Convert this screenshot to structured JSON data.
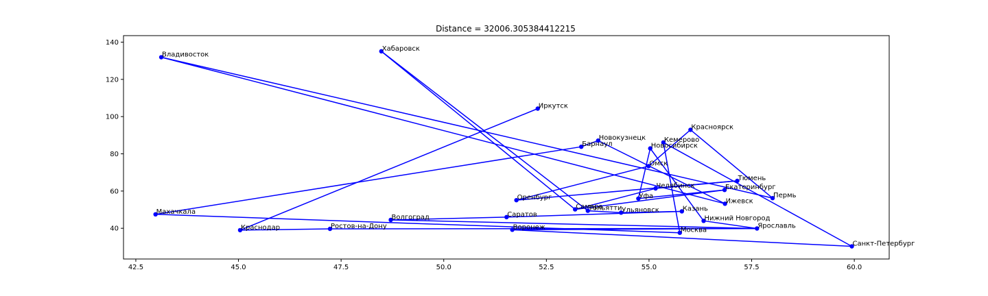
{
  "chart_data": {
    "type": "line",
    "title": "Distance = 32006.305384412215",
    "xlabel": "",
    "ylabel": "",
    "xlim": [
      42.2,
      60.85
    ],
    "ylim": [
      23.5,
      143.5
    ],
    "x_ticks": [
      42.5,
      45.0,
      47.5,
      50.0,
      52.5,
      55.0,
      57.5,
      60.0
    ],
    "x_tick_labels": [
      "42.5",
      "45.0",
      "47.5",
      "50.0",
      "52.5",
      "55.0",
      "57.5",
      "60.0"
    ],
    "y_ticks": [
      40,
      60,
      80,
      100,
      120,
      140
    ],
    "y_tick_labels": [
      "40",
      "60",
      "80",
      "100",
      "120",
      "140"
    ],
    "grid": false,
    "line_color": "#0000ff",
    "marker_color": "#0000ff",
    "path": [
      {
        "name": "Иркутск",
        "x": 52.29,
        "y": 104.3
      },
      {
        "name": "Краснодар",
        "x": 45.04,
        "y": 39.0
      },
      {
        "name": "Ростов-на-Дону",
        "x": 47.23,
        "y": 39.7
      },
      {
        "name": "Ярославль",
        "x": 57.63,
        "y": 39.9
      },
      {
        "name": "Нижний Новгород",
        "x": 56.33,
        "y": 44.0
      },
      {
        "name": "Новосибирск",
        "x": 55.03,
        "y": 82.9
      },
      {
        "name": "Уфа",
        "x": 54.74,
        "y": 55.97
      },
      {
        "name": "Екатеринбург",
        "x": 56.84,
        "y": 60.6
      },
      {
        "name": "Самара",
        "x": 53.2,
        "y": 50.15
      },
      {
        "name": "Хабаровск",
        "x": 48.48,
        "y": 135.08
      },
      {
        "name": "Тольятти",
        "x": 53.51,
        "y": 49.42
      },
      {
        "name": "Ульяновск",
        "x": 54.32,
        "y": 48.4
      },
      {
        "name": "Казань",
        "x": 55.8,
        "y": 49.1
      },
      {
        "name": "Саратов",
        "x": 51.53,
        "y": 46.0
      },
      {
        "name": "Волгоград",
        "x": 48.71,
        "y": 44.5
      },
      {
        "name": "Ярославль",
        "x": 57.63,
        "y": 39.9
      },
      {
        "name": "Воронеж",
        "x": 51.67,
        "y": 39.2
      },
      {
        "name": "Санкт-Петербург",
        "x": 59.94,
        "y": 30.3
      },
      {
        "name": "Кемерово",
        "x": 55.35,
        "y": 86.1
      },
      {
        "name": "Москва",
        "x": 55.75,
        "y": 37.6
      },
      {
        "name": "Махачкала",
        "x": 42.98,
        "y": 47.5
      },
      {
        "name": "Барнаул",
        "x": 53.35,
        "y": 83.8
      },
      {
        "name": "Новокузнецк",
        "x": 53.76,
        "y": 87.1
      },
      {
        "name": "Ижевск",
        "x": 56.85,
        "y": 53.2
      },
      {
        "name": "Владивосток",
        "x": 43.12,
        "y": 131.9
      },
      {
        "name": "Пермь",
        "x": 58.01,
        "y": 56.2
      },
      {
        "name": "Красноярск",
        "x": 56.01,
        "y": 92.9
      },
      {
        "name": "Омск",
        "x": 54.99,
        "y": 73.4
      },
      {
        "name": "Оренбург",
        "x": 51.77,
        "y": 55.1
      },
      {
        "name": "Тюмень",
        "x": 57.15,
        "y": 65.5
      },
      {
        "name": "Челябинск",
        "x": 55.16,
        "y": 61.4
      },
      {
        "name": "Самара",
        "x": 53.2,
        "y": 50.15
      }
    ],
    "cities": [
      {
        "name": "Владивосток",
        "x": 43.12,
        "y": 131.9
      },
      {
        "name": "Хабаровск",
        "x": 48.48,
        "y": 135.08
      },
      {
        "name": "Иркутск",
        "x": 52.29,
        "y": 104.3
      },
      {
        "name": "Красноярск",
        "x": 56.01,
        "y": 92.9
      },
      {
        "name": "Новокузнецк",
        "x": 53.76,
        "y": 87.1
      },
      {
        "name": "Кемерово",
        "x": 55.35,
        "y": 86.1
      },
      {
        "name": "Барнаул",
        "x": 53.35,
        "y": 83.8
      },
      {
        "name": "Новосибирск",
        "x": 55.03,
        "y": 82.9
      },
      {
        "name": "Омск",
        "x": 54.99,
        "y": 73.4
      },
      {
        "name": "Тюмень",
        "x": 57.15,
        "y": 65.5
      },
      {
        "name": "Челябинск",
        "x": 55.16,
        "y": 61.4
      },
      {
        "name": "Екатеринбург",
        "x": 56.84,
        "y": 60.6
      },
      {
        "name": "Пермь",
        "x": 58.01,
        "y": 56.2
      },
      {
        "name": "Оренбург",
        "x": 51.77,
        "y": 55.1
      },
      {
        "name": "Уфа",
        "x": 54.74,
        "y": 55.97
      },
      {
        "name": "Ижевск",
        "x": 56.85,
        "y": 53.2
      },
      {
        "name": "Самара",
        "x": 53.2,
        "y": 50.15
      },
      {
        "name": "Тольятти",
        "x": 53.51,
        "y": 49.42
      },
      {
        "name": "Казань",
        "x": 55.8,
        "y": 49.1
      },
      {
        "name": "Ульяновск",
        "x": 54.32,
        "y": 48.4
      },
      {
        "name": "Махачкала",
        "x": 42.98,
        "y": 47.5
      },
      {
        "name": "Саратов",
        "x": 51.53,
        "y": 46.0
      },
      {
        "name": "Волгоград",
        "x": 48.71,
        "y": 44.5
      },
      {
        "name": "Нижний Новгород",
        "x": 56.33,
        "y": 44.0
      },
      {
        "name": "Ярославль",
        "x": 57.63,
        "y": 39.9
      },
      {
        "name": "Ростов-на-Дону",
        "x": 47.23,
        "y": 39.7
      },
      {
        "name": "Воронеж",
        "x": 51.67,
        "y": 39.2
      },
      {
        "name": "Краснодар",
        "x": 45.04,
        "y": 39.0
      },
      {
        "name": "Москва",
        "x": 55.75,
        "y": 37.6
      },
      {
        "name": "Санкт-Петербург",
        "x": 59.94,
        "y": 30.3
      }
    ]
  }
}
